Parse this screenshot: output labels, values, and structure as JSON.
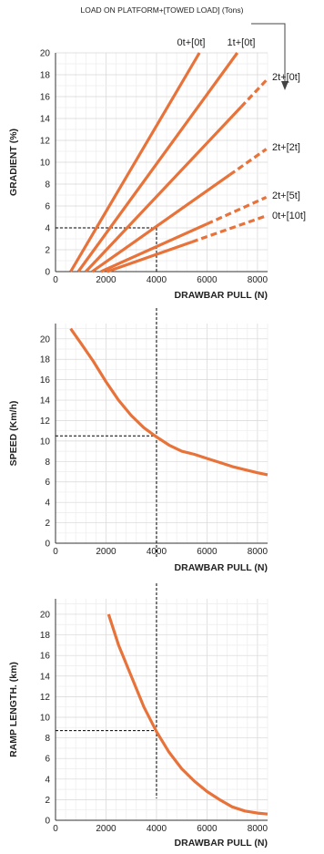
{
  "header": {
    "title": "LOAD ON PLATFORM+[TOWED LOAD]  (Tons)"
  },
  "colors": {
    "curve": "#E8733A",
    "grid_minor": "#ececec",
    "grid_major": "#d6d6d6",
    "guide": "#000000"
  },
  "chart_data": [
    {
      "type": "line",
      "xlabel": "DRAWBAR PULL (N)",
      "ylabel": "GRADIENT  (%)",
      "xlim": [
        0,
        8400
      ],
      "ylim": [
        0,
        20
      ],
      "xticks": [
        "0",
        "2000",
        "4000",
        "6000",
        "8000"
      ],
      "yticks": [
        "0",
        "2",
        "4",
        "6",
        "8",
        "10",
        "12",
        "14",
        "16",
        "18",
        "20"
      ],
      "grid": true,
      "series": [
        {
          "name": "0t+[0t]",
          "x": [
            600,
            5700
          ],
          "y": [
            0,
            20
          ],
          "dashed_from_x": null
        },
        {
          "name": "1t+[0t]",
          "x": [
            900,
            7200
          ],
          "y": [
            0,
            20
          ],
          "dashed_from_x": null
        },
        {
          "name": "2t+[0t]",
          "x": [
            1200,
            8350
          ],
          "y": [
            0,
            17.5
          ],
          "dashed_from_x": 7350
        },
        {
          "name": "2t+[2t]",
          "x": [
            1450,
            8350
          ],
          "y": [
            0,
            11.2
          ],
          "dashed_from_x": 6900
        },
        {
          "name": "2t+[5t]",
          "x": [
            1800,
            8350
          ],
          "y": [
            0,
            6.8
          ],
          "dashed_from_x": 6000
        },
        {
          "name": "0t+[10t]",
          "x": [
            2050,
            8350
          ],
          "y": [
            0,
            5.1
          ],
          "dashed_from_x": 5400
        }
      ],
      "reference": {
        "x": 4000,
        "y": 4
      }
    },
    {
      "type": "line",
      "xlabel": "DRAWBAR PULL (N)",
      "ylabel": "SPEED (Km/h)",
      "xlim": [
        0,
        8400
      ],
      "ylim": [
        0,
        21.5
      ],
      "xticks": [
        "0",
        "2000",
        "4000",
        "6000",
        "8000"
      ],
      "yticks": [
        "0",
        "2",
        "4",
        "6",
        "8",
        "10",
        "12",
        "14",
        "16",
        "18",
        "20"
      ],
      "grid": true,
      "series": [
        {
          "x": [
            600,
            1000,
            1500,
            2000,
            2500,
            3000,
            3500,
            4000,
            4500,
            5000,
            5500,
            6000,
            6500,
            7000,
            7500,
            8000,
            8400
          ],
          "y": [
            21.0,
            19.6,
            17.8,
            15.8,
            14.0,
            12.5,
            11.3,
            10.4,
            9.6,
            9.0,
            8.7,
            8.3,
            7.9,
            7.5,
            7.2,
            6.9,
            6.7
          ]
        }
      ],
      "reference": {
        "x": 4000,
        "y": 10.5
      }
    },
    {
      "type": "line",
      "xlabel": "DRAWBAR PULL (N)",
      "ylabel": "RAMP LENGTH. (km)",
      "xlim": [
        0,
        8400
      ],
      "ylim": [
        0,
        21.5
      ],
      "xticks": [
        "0",
        "2000",
        "4000",
        "6000",
        "8000"
      ],
      "yticks": [
        "0",
        "2",
        "4",
        "6",
        "8",
        "10",
        "12",
        "14",
        "16",
        "18",
        "20"
      ],
      "grid": true,
      "series": [
        {
          "x": [
            2100,
            2500,
            3000,
            3500,
            4000,
            4500,
            5000,
            5500,
            6000,
            6500,
            7000,
            7500,
            8000,
            8400
          ],
          "y": [
            20.0,
            17.0,
            14.0,
            11.0,
            8.6,
            6.6,
            5.0,
            3.8,
            2.8,
            2.0,
            1.3,
            0.9,
            0.7,
            0.6
          ]
        }
      ],
      "reference": {
        "x": 4000,
        "y": 8.7
      }
    }
  ]
}
